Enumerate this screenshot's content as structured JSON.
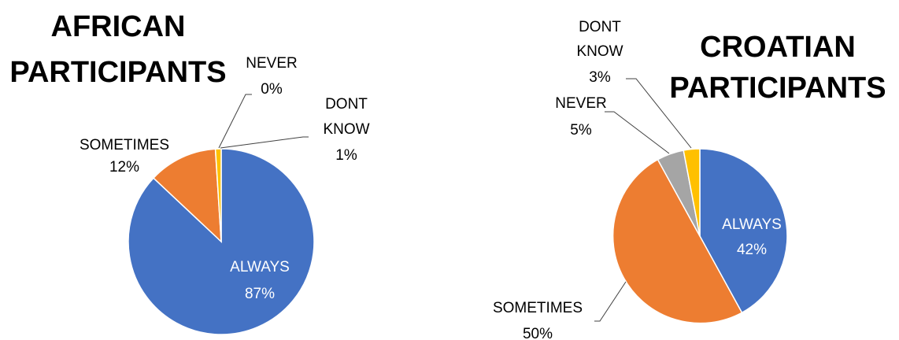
{
  "chart_data": [
    {
      "type": "pie",
      "title": [
        "AFRICAN",
        "PARTICIPANTS"
      ],
      "slices": [
        {
          "label": "ALWAYS",
          "value": 87,
          "pct": "87%",
          "color": "#4472c4"
        },
        {
          "label": "SOMETIMES",
          "value": 12,
          "pct": "12%",
          "color": "#ed7d31"
        },
        {
          "label": "NEVER",
          "value": 0,
          "pct": "0%",
          "color": "#a5a5a5"
        },
        {
          "label": "DONT KNOW",
          "value": 1,
          "pct": "1%",
          "color": "#ffc000"
        }
      ]
    },
    {
      "type": "pie",
      "title": [
        "CROATIAN",
        "PARTICIPANTS"
      ],
      "slices": [
        {
          "label": "ALWAYS",
          "value": 42,
          "pct": "42%",
          "color": "#4472c4"
        },
        {
          "label": "SOMETIMES",
          "value": 50,
          "pct": "50%",
          "color": "#ed7d31"
        },
        {
          "label": "NEVER",
          "value": 5,
          "pct": "5%",
          "color": "#a5a5a5"
        },
        {
          "label": "DONT KNOW",
          "value": 3,
          "pct": "3%",
          "color": "#ffc000"
        }
      ]
    }
  ]
}
